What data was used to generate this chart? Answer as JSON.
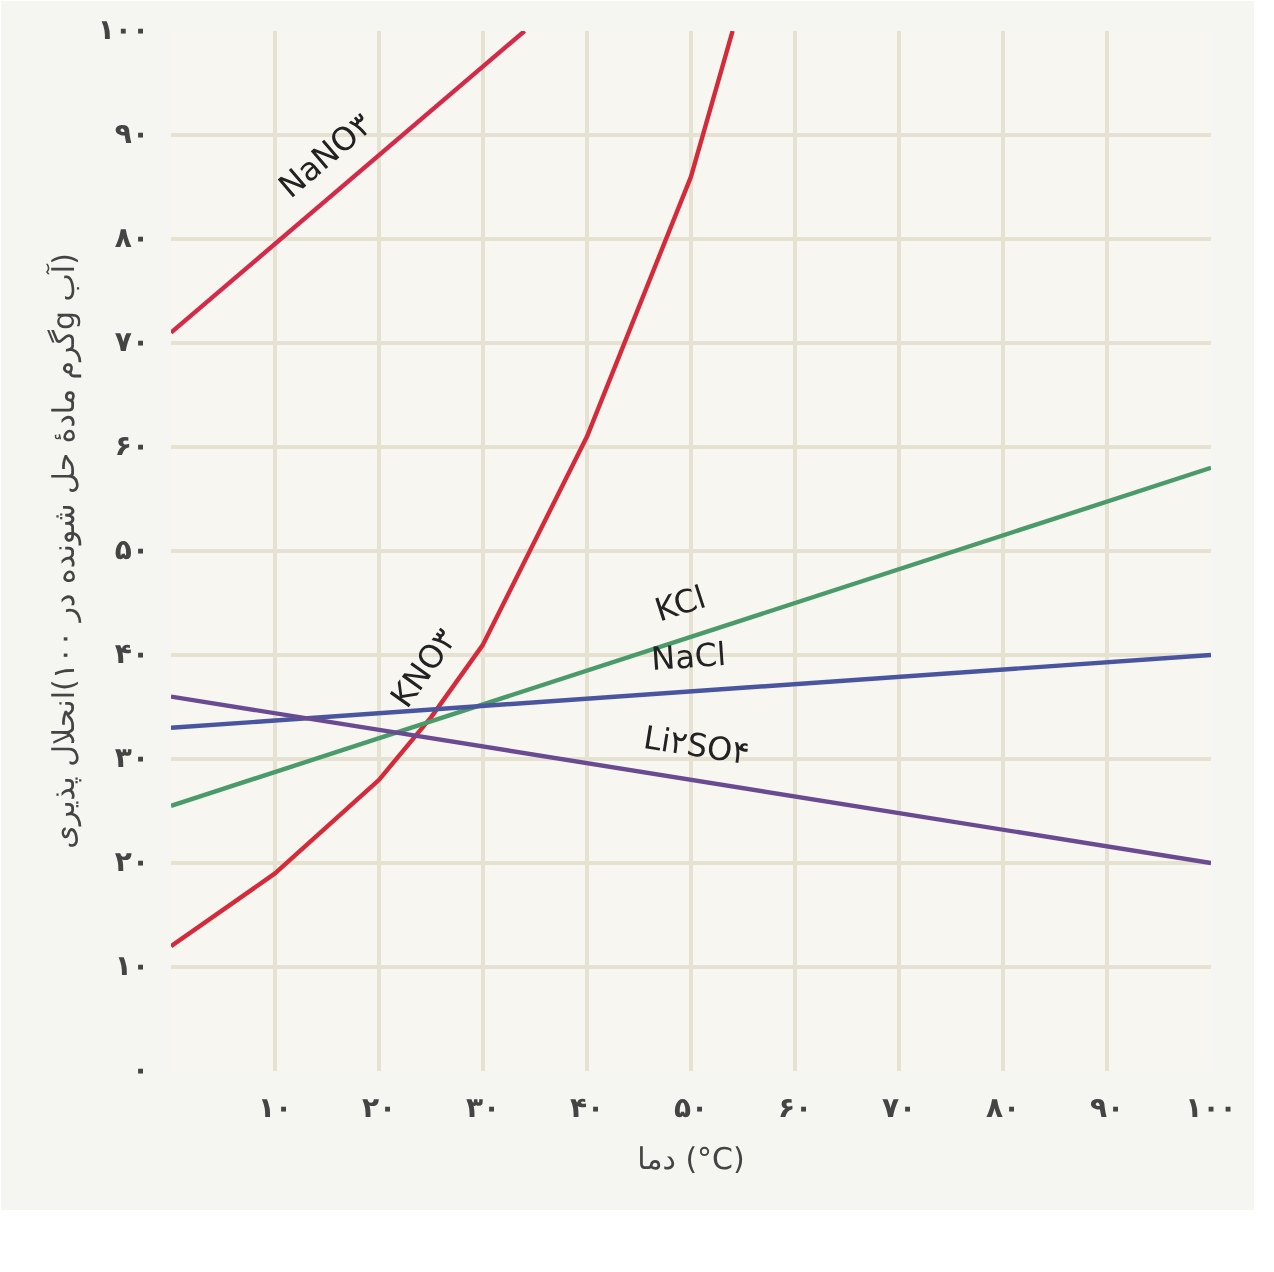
{
  "chart_data": {
    "type": "line",
    "xlabel": "دما (°C)",
    "ylabel": "انحلال پذیری(گرم مادهٔ حل شونده در ۱۰۰g آب)",
    "xlim": [
      0,
      100
    ],
    "ylim": [
      0,
      100
    ],
    "xticks": [
      {
        "value": 0,
        "label": null
      },
      {
        "value": 10,
        "label": "۱۰"
      },
      {
        "value": 20,
        "label": "۲۰"
      },
      {
        "value": 30,
        "label": "۳۰"
      },
      {
        "value": 40,
        "label": "۴۰"
      },
      {
        "value": 50,
        "label": "۵۰"
      },
      {
        "value": 60,
        "label": "۶۰"
      },
      {
        "value": 70,
        "label": "۷۰"
      },
      {
        "value": 80,
        "label": "۸۰"
      },
      {
        "value": 90,
        "label": "۹۰"
      },
      {
        "value": 100,
        "label": "۱۰۰"
      }
    ],
    "yticks": [
      {
        "value": 0,
        "label": "۰"
      },
      {
        "value": 10,
        "label": "۱۰"
      },
      {
        "value": 20,
        "label": "۲۰"
      },
      {
        "value": 30,
        "label": "۳۰"
      },
      {
        "value": 40,
        "label": "۴۰"
      },
      {
        "value": 50,
        "label": "۵۰"
      },
      {
        "value": 60,
        "label": "۶۰"
      },
      {
        "value": 70,
        "label": "۷۰"
      },
      {
        "value": 80,
        "label": "۸۰"
      },
      {
        "value": 90,
        "label": "۹۰"
      },
      {
        "value": 100,
        "label": "۱۰۰"
      }
    ],
    "grid": true,
    "marker": "none",
    "line_style": "solid",
    "series": [
      {
        "name": "NaNO۳",
        "color": "#d42a4a",
        "x": [
          0,
          34
        ],
        "values": [
          71,
          100
        ]
      },
      {
        "name": "KNO۳",
        "color": "#d42a3a",
        "x": [
          0,
          10,
          20,
          25,
          30,
          40,
          50,
          54
        ],
        "values": [
          12,
          19,
          28,
          34,
          41,
          61,
          86,
          100
        ]
      },
      {
        "name": "KCl",
        "color": "#4a9a6a",
        "x": [
          0,
          100
        ],
        "values": [
          25.5,
          58
        ]
      },
      {
        "name": "NaCl",
        "color": "#4a55a0",
        "x": [
          0,
          100
        ],
        "values": [
          33,
          40
        ]
      },
      {
        "name": "Li۲SO۴",
        "color": "#6a4a90",
        "x": [
          0,
          100
        ],
        "values": [
          36,
          20
        ]
      }
    ]
  }
}
